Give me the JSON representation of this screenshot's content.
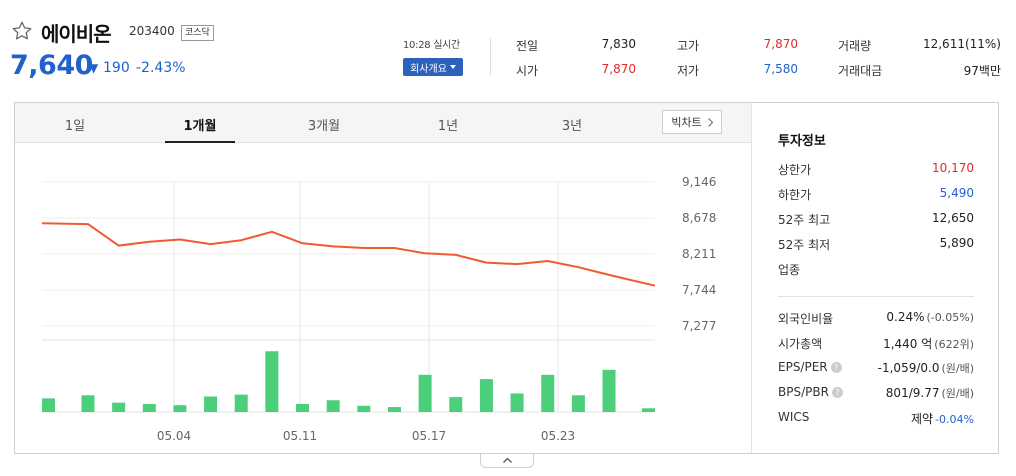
{
  "header": {
    "stock_name": "에이비온",
    "stock_code": "203400",
    "market_badge": "코스닥",
    "current_price": "7,640",
    "change_arrow": "▼",
    "change_value": "190",
    "change_pct": "-2.43%",
    "time_label": "10:28 실시간",
    "company_button": "회사개요",
    "colors": {
      "down": "#1f62cc",
      "up": "#e22a2a",
      "brand": "#2c61be"
    }
  },
  "stats": {
    "prev_close": {
      "label": "전일",
      "value": "7,830"
    },
    "open": {
      "label": "시가",
      "value": "7,870"
    },
    "high": {
      "label": "고가",
      "value": "7,870"
    },
    "low": {
      "label": "저가",
      "value": "7,580"
    },
    "volume": {
      "label": "거래량",
      "value": "12,611(11%)"
    },
    "amount": {
      "label": "거래대금",
      "value": "97백만"
    }
  },
  "tabs": [
    "1일",
    "1개월",
    "3개월",
    "1년",
    "3년"
  ],
  "active_tab": "1개월",
  "big_chart_label": "빅차트",
  "chart_data": {
    "type": "line",
    "y_ticks": [
      "9,146",
      "8,678",
      "8,211",
      "7,744",
      "7,277"
    ],
    "ylim": [
      7277,
      9146
    ],
    "x_labels": [
      "05.04",
      "05.11",
      "05.17",
      "05.23"
    ],
    "price_series": {
      "values": [
        8610,
        8600,
        8320,
        8370,
        8400,
        8340,
        8390,
        8500,
        8350,
        8310,
        8290,
        8290,
        8220,
        8200,
        8100,
        8080,
        8120,
        8040,
        7940,
        7800
      ],
      "color": "#f05a30"
    },
    "volume_series": {
      "values": [
        0.22,
        0.27,
        0.15,
        0.13,
        0.11,
        0.25,
        0.28,
        0.98,
        0.13,
        0.19,
        0.1,
        0.08,
        0.6,
        0.24,
        0.53,
        0.3,
        0.6,
        0.27,
        0.68,
        0.06
      ],
      "color": "#4ccf7a"
    }
  },
  "investment_info": {
    "title": "투자정보",
    "rows": [
      {
        "label": "상한가",
        "value": "10,170",
        "color": "red"
      },
      {
        "label": "하한가",
        "value": "5,490",
        "color": "blue"
      },
      {
        "label": "52주 최고",
        "value": "12,650",
        "color": "dark"
      },
      {
        "label": "52주 최저",
        "value": "5,890",
        "color": "dark"
      },
      {
        "label": "업종",
        "value": "",
        "color": "dark"
      }
    ],
    "rows2": [
      {
        "label": "외국인비율",
        "value": "0.24%",
        "extra": "(-0.05%)"
      },
      {
        "label": "시가총액",
        "value": "1,440 억",
        "extra": "(622위)"
      },
      {
        "label": "EPS/PER",
        "value": "-1,059/0.0",
        "extra": "(원/배)",
        "help": "?"
      },
      {
        "label": "BPS/PBR",
        "value": "801/9.77",
        "extra": "(원/배)",
        "help": "?"
      },
      {
        "label": "WICS",
        "value": "제약",
        "extra": "-0.04%"
      }
    ]
  }
}
